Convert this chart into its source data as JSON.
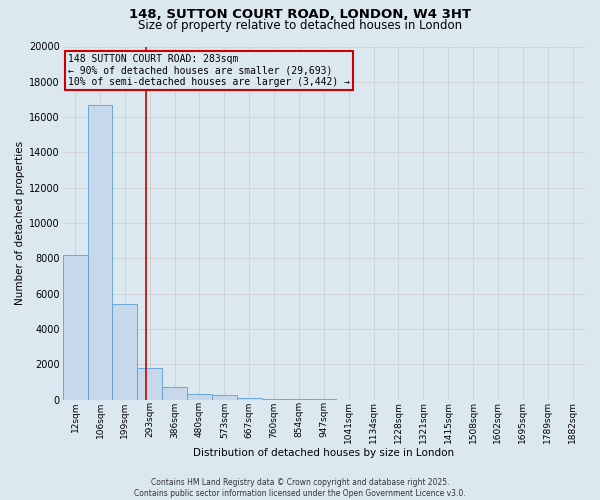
{
  "title_line1": "148, SUTTON COURT ROAD, LONDON, W4 3HT",
  "title_line2": "Size of property relative to detached houses in London",
  "xlabel": "Distribution of detached houses by size in London",
  "ylabel": "Number of detached properties",
  "bar_labels": [
    "12sqm",
    "106sqm",
    "199sqm",
    "293sqm",
    "386sqm",
    "480sqm",
    "573sqm",
    "667sqm",
    "760sqm",
    "854sqm",
    "947sqm",
    "1041sqm",
    "1134sqm",
    "1228sqm",
    "1321sqm",
    "1415sqm",
    "1508sqm",
    "1602sqm",
    "1695sqm",
    "1789sqm",
    "1882sqm"
  ],
  "bar_heights": [
    8200,
    16700,
    5400,
    1800,
    700,
    350,
    250,
    100,
    60,
    40,
    25,
    15,
    10,
    8,
    5,
    4,
    3,
    2,
    2,
    1,
    1
  ],
  "bar_color": "#c8d8ec",
  "bar_edge_color": "#5a9fd4",
  "vline_x": 2.85,
  "vline_color": "#cc0000",
  "annotation_text": "148 SUTTON COURT ROAD: 283sqm\n← 90% of detached houses are smaller (29,693)\n10% of semi-detached houses are larger (3,442) →",
  "ylim": [
    0,
    20000
  ],
  "yticks": [
    0,
    2000,
    4000,
    6000,
    8000,
    10000,
    12000,
    14000,
    16000,
    18000,
    20000
  ],
  "grid_color": "#cccccc",
  "background_color": "#dce8f0",
  "footer_text": "Contains HM Land Registry data © Crown copyright and database right 2025.\nContains public sector information licensed under the Open Government Licence v3.0."
}
